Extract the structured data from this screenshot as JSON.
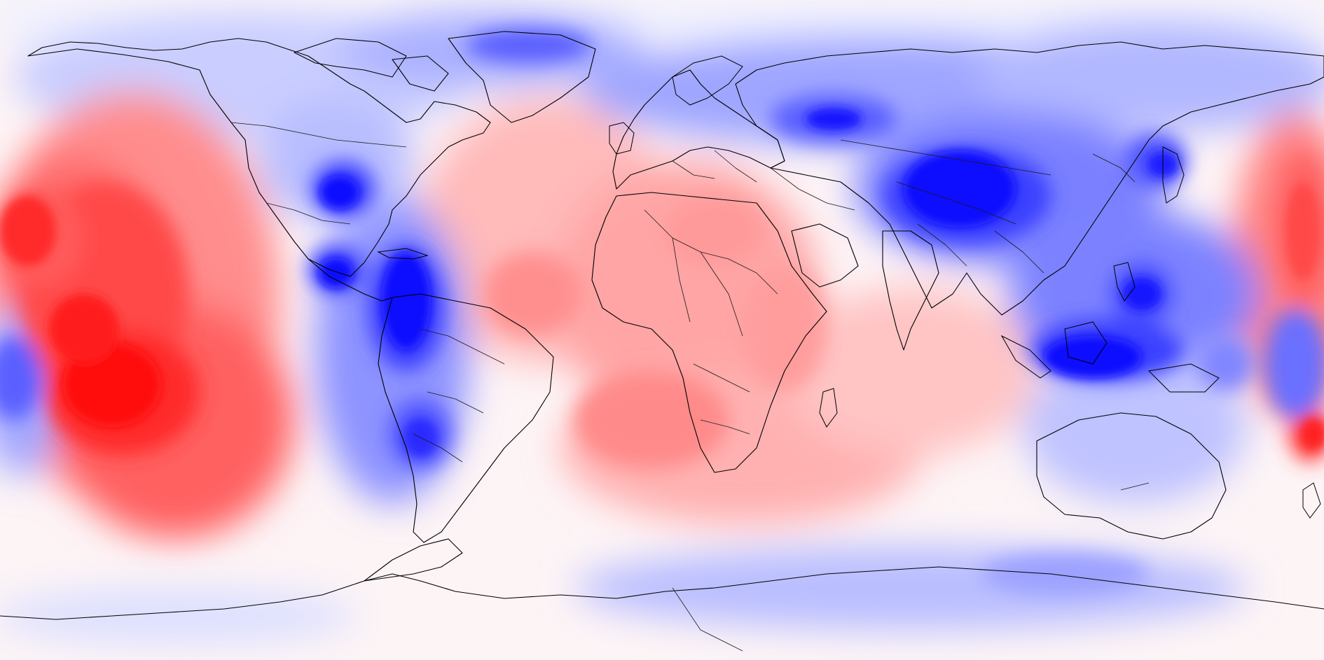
{
  "map": {
    "projection": "equirectangular",
    "extent": "global",
    "colorscale": {
      "negative": "#0000ff",
      "neutral": "#ffffff",
      "positive": "#ff0000",
      "levels": 10
    },
    "background_color": "#fff6f6",
    "coastline_color": "#000000",
    "shows_country_borders": true,
    "labels": []
  }
}
